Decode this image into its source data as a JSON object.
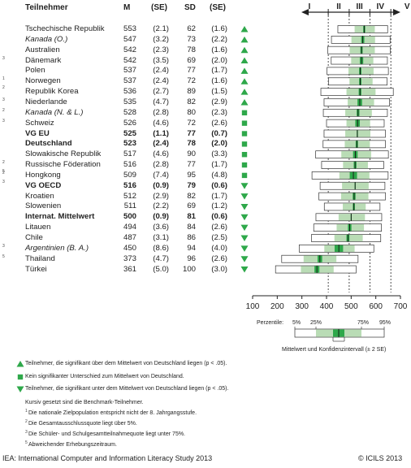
{
  "headers": {
    "country": "Teilnehmer",
    "mean": "M",
    "se1": "(SE)",
    "sd": "SD",
    "se2": "(SE)"
  },
  "rows": [
    {
      "fn": "",
      "name": "Tschechische Republik",
      "m": "553",
      "se": "(2.1)",
      "sd": "62",
      "sdse": "(1.6)",
      "sig": "up",
      "style": ""
    },
    {
      "fn": "",
      "name": "Kanada (O.)",
      "m": "547",
      "se": "(3.2)",
      "sd": "73",
      "sdse": "(2.2)",
      "sig": "up",
      "style": "italic"
    },
    {
      "fn": "",
      "name": "Australien",
      "m": "542",
      "se": "(2.3)",
      "sd": "78",
      "sdse": "(1.6)",
      "sig": "up",
      "style": ""
    },
    {
      "fn": "3",
      "name": "Dänemark",
      "m": "542",
      "se": "(3.5)",
      "sd": "69",
      "sdse": "(2.0)",
      "sig": "up",
      "style": ""
    },
    {
      "fn": "",
      "name": "Polen",
      "m": "537",
      "se": "(2.4)",
      "sd": "77",
      "sdse": "(1.7)",
      "sig": "up",
      "style": ""
    },
    {
      "fn": "1 2",
      "name": "Norwegen",
      "m": "537",
      "se": "(2.4)",
      "sd": "72",
      "sdse": "(1.6)",
      "sig": "up",
      "style": ""
    },
    {
      "fn": "",
      "name": "Republik Korea",
      "m": "536",
      "se": "(2.7)",
      "sd": "89",
      "sdse": "(1.5)",
      "sig": "up",
      "style": ""
    },
    {
      "fn": "3",
      "name": "Niederlande",
      "m": "535",
      "se": "(4.7)",
      "sd": "82",
      "sdse": "(2.9)",
      "sig": "up",
      "style": ""
    },
    {
      "fn": "2",
      "name": "Kanada (N. & L.)",
      "m": "528",
      "se": "(2.8)",
      "sd": "80",
      "sdse": "(2.3)",
      "sig": "same",
      "style": "italic"
    },
    {
      "fn": "3",
      "name": "Schweiz",
      "m": "526",
      "se": "(4.6)",
      "sd": "72",
      "sdse": "(2.6)",
      "sig": "same",
      "style": ""
    },
    {
      "fn": "",
      "name": "VG EU",
      "m": "525",
      "se": "(1.1)",
      "sd": "77",
      "sdse": "(0.7)",
      "sig": "same",
      "style": "bold"
    },
    {
      "fn": "",
      "name": "Deutschland",
      "m": "523",
      "se": "(2.4)",
      "sd": "78",
      "sdse": "(2.0)",
      "sig": "same",
      "style": "bold"
    },
    {
      "fn": "",
      "name": "Slowakische Republik",
      "m": "517",
      "se": "(4.6)",
      "sd": "90",
      "sdse": "(3.3)",
      "sig": "same",
      "style": ""
    },
    {
      "fn": "2 5",
      "name": "Russische Föderation",
      "m": "516",
      "se": "(2.8)",
      "sd": "77",
      "sdse": "(1.7)",
      "sig": "same",
      "style": ""
    },
    {
      "fn": "2 3",
      "name": "Hongkong",
      "m": "509",
      "se": "(7.4)",
      "sd": "95",
      "sdse": "(4.8)",
      "sig": "same",
      "style": ""
    },
    {
      "fn": "",
      "name": "VG OECD",
      "m": "516",
      "se": "(0.9)",
      "sd": "79",
      "sdse": "(0.6)",
      "sig": "down",
      "style": "bold"
    },
    {
      "fn": "",
      "name": "Kroatien",
      "m": "512",
      "se": "(2.9)",
      "sd": "82",
      "sdse": "(1.7)",
      "sig": "down",
      "style": ""
    },
    {
      "fn": "",
      "name": "Slowenien",
      "m": "511",
      "se": "(2.2)",
      "sd": "69",
      "sdse": "(1.2)",
      "sig": "down",
      "style": ""
    },
    {
      "fn": "",
      "name": "Internat. Mittelwert",
      "m": "500",
      "se": "(0.9)",
      "sd": "81",
      "sdse": "(0.6)",
      "sig": "down",
      "style": "bold"
    },
    {
      "fn": "",
      "name": "Litauen",
      "m": "494",
      "se": "(3.6)",
      "sd": "84",
      "sdse": "(2.6)",
      "sig": "down",
      "style": ""
    },
    {
      "fn": "",
      "name": "Chile",
      "m": "487",
      "se": "(3.1)",
      "sd": "86",
      "sdse": "(2.5)",
      "sig": "down",
      "style": ""
    },
    {
      "fn": "3",
      "name": "Argentinien (B. A.)",
      "m": "450",
      "se": "(8.6)",
      "sd": "94",
      "sdse": "(4.0)",
      "sig": "down",
      "style": "italic"
    },
    {
      "fn": "5",
      "name": "Thailand",
      "m": "373",
      "se": "(4.7)",
      "sd": "96",
      "sdse": "(2.6)",
      "sig": "down",
      "style": ""
    },
    {
      "fn": "",
      "name": "Türkei",
      "m": "361",
      "se": "(5.0)",
      "sd": "100",
      "sdse": "(3.0)",
      "sig": "down",
      "style": ""
    }
  ],
  "chart_data": {
    "type": "boxplot-percentile",
    "x_axis": {
      "range": [
        100,
        700
      ],
      "ticks": [
        100,
        200,
        300,
        400,
        500,
        600,
        700
      ]
    },
    "levels": {
      "labels": [
        "I",
        "II",
        "III",
        "IV",
        "V"
      ],
      "cutpoints": [
        407,
        492,
        576,
        661
      ]
    },
    "series": [
      {
        "country": "Tschechische Republik",
        "mean": 553,
        "se": 2.1,
        "p5": 446,
        "p25": 514,
        "p75": 596,
        "p95": 648
      },
      {
        "country": "Kanada (O.)",
        "mean": 547,
        "se": 3.2,
        "p5": 420,
        "p25": 501,
        "p75": 597,
        "p95": 658
      },
      {
        "country": "Australien",
        "mean": 542,
        "se": 2.3,
        "p5": 405,
        "p25": 494,
        "p75": 596,
        "p95": 659
      },
      {
        "country": "Dänemark",
        "mean": 542,
        "se": 3.5,
        "p5": 419,
        "p25": 500,
        "p75": 590,
        "p95": 647
      },
      {
        "country": "Polen",
        "mean": 537,
        "se": 2.4,
        "p5": 402,
        "p25": 489,
        "p75": 591,
        "p95": 651
      },
      {
        "country": "Norwegen",
        "mean": 537,
        "se": 2.4,
        "p5": 408,
        "p25": 493,
        "p75": 587,
        "p95": 646
      },
      {
        "country": "Republik Korea",
        "mean": 536,
        "se": 2.7,
        "p5": 377,
        "p25": 481,
        "p75": 599,
        "p95": 671
      },
      {
        "country": "Niederlande",
        "mean": 535,
        "se": 4.7,
        "p5": 390,
        "p25": 486,
        "p75": 593,
        "p95": 656
      },
      {
        "country": "Kanada (N. & L.)",
        "mean": 528,
        "se": 2.8,
        "p5": 387,
        "p25": 476,
        "p75": 584,
        "p95": 647
      },
      {
        "country": "Schweiz",
        "mean": 526,
        "se": 4.6,
        "p5": 400,
        "p25": 481,
        "p75": 577,
        "p95": 634
      },
      {
        "country": "VG EU",
        "mean": 525,
        "se": 1.1,
        "p5": 390,
        "p25": 476,
        "p75": 578,
        "p95": 639
      },
      {
        "country": "Deutschland",
        "mean": 523,
        "se": 2.4,
        "p5": 386,
        "p25": 474,
        "p75": 576,
        "p95": 639
      },
      {
        "country": "Slowakische Republik",
        "mean": 517,
        "se": 4.6,
        "p5": 356,
        "p25": 460,
        "p75": 581,
        "p95": 651
      },
      {
        "country": "Russische Föderation",
        "mean": 516,
        "se": 2.8,
        "p5": 380,
        "p25": 467,
        "p75": 568,
        "p95": 632
      },
      {
        "country": "Hongkong",
        "mean": 509,
        "se": 7.4,
        "p5": 341,
        "p25": 452,
        "p75": 574,
        "p95": 650
      },
      {
        "country": "VG OECD",
        "mean": 516,
        "se": 0.9,
        "p5": 374,
        "p25": 463,
        "p75": 571,
        "p95": 637
      },
      {
        "country": "Kroatien",
        "mean": 512,
        "se": 2.9,
        "p5": 369,
        "p25": 459,
        "p75": 570,
        "p95": 639
      },
      {
        "country": "Slowenien",
        "mean": 511,
        "se": 2.2,
        "p5": 391,
        "p25": 466,
        "p75": 559,
        "p95": 617
      },
      {
        "country": "Internat. Mittelwert",
        "mean": 500,
        "se": 0.9,
        "p5": 357,
        "p25": 449,
        "p75": 556,
        "p95": 624
      },
      {
        "country": "Litauen",
        "mean": 494,
        "se": 3.6,
        "p5": 348,
        "p25": 441,
        "p75": 552,
        "p95": 623
      },
      {
        "country": "Chile",
        "mean": 487,
        "se": 3.1,
        "p5": 339,
        "p25": 432,
        "p75": 547,
        "p95": 620
      },
      {
        "country": "Argentinien (B. A.)",
        "mean": 450,
        "se": 8.6,
        "p5": 289,
        "p25": 391,
        "p75": 514,
        "p95": 592
      },
      {
        "country": "Thailand",
        "mean": 373,
        "se": 4.7,
        "p5": 218,
        "p25": 307,
        "p75": 440,
        "p95": 528
      },
      {
        "country": "Türkei",
        "mean": 361,
        "se": 5.0,
        "p5": 193,
        "p25": 296,
        "p75": 429,
        "p95": 520
      }
    ]
  },
  "legend_box": {
    "perzentile_label": "Perzentile:",
    "p5": "5%",
    "p25": "25%",
    "p75": "75%",
    "p95": "95%",
    "caption": "Mittelwert und Konfidenzintervall (± 2 SE)"
  },
  "sig_legend": {
    "up": "Teilnehmer, die signifikant über dem Mittelwert von Deutschland liegen (p < .05).",
    "same": "Kein signifikanter Unterschied zum Mittelwert von Deutschland.",
    "down": "Teilnehmer, die signifikant unter dem Mittelwert von Deutschland liegen (p < .05)."
  },
  "notes": [
    {
      "fn": "",
      "text": "Kursiv gesetzt sind die Benchmark-Teilnehmer."
    },
    {
      "fn": "1",
      "text": "Die nationale Zielpopulation entspricht nicht der 8. Jahrgangsstufe."
    },
    {
      "fn": "2",
      "text": "Die Gesamtausschlussquote liegt über 5%."
    },
    {
      "fn": "3",
      "text": "Die Schüler- und Schulgesamtteilnahmequote liegt unter 75%."
    },
    {
      "fn": "5",
      "text": "Abweichender Erhebungszeitraum."
    }
  ],
  "footer": {
    "left": "IEA: International Computer and Information Literacy Study 2013",
    "right": "© ICILS 2013"
  },
  "colors": {
    "green": "#2ea84a",
    "light_green": "#b9dcb5",
    "box_border": "#333333"
  }
}
